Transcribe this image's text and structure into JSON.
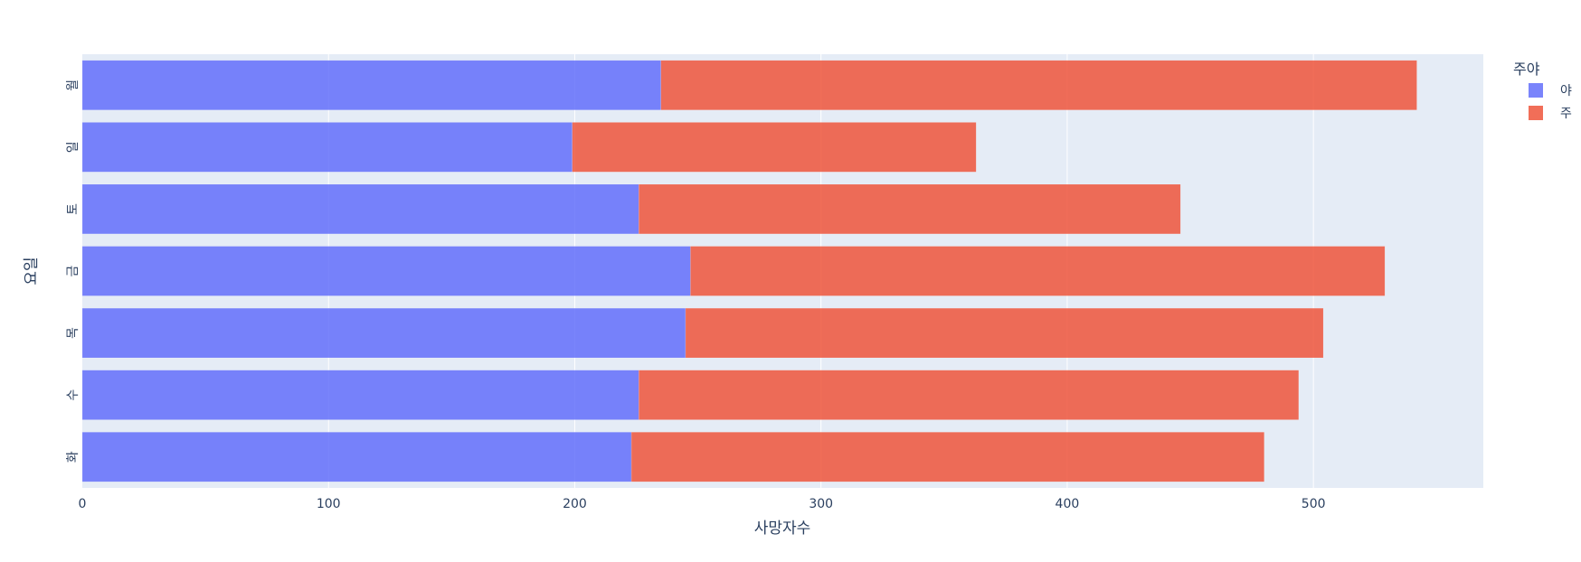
{
  "chart_data": {
    "type": "bar",
    "orientation": "horizontal",
    "barmode": "stack",
    "categories": [
      "화",
      "수",
      "목",
      "금",
      "토",
      "일",
      "월"
    ],
    "series": [
      {
        "name": "야",
        "color": "#636efa",
        "values": [
          223,
          226,
          245,
          247,
          226,
          199,
          235
        ]
      },
      {
        "name": "주",
        "color": "#ef553b",
        "values": [
          257,
          268,
          259,
          282,
          220,
          164,
          307
        ]
      }
    ],
    "xlabel": "사망자수",
    "ylabel": "요일",
    "xlim": [
      0,
      569
    ],
    "xticks": [
      0,
      100,
      200,
      300,
      400,
      500
    ],
    "legend": {
      "title": "주야",
      "position": "right"
    },
    "grid": true,
    "plot_background": "#e5ecf6"
  }
}
